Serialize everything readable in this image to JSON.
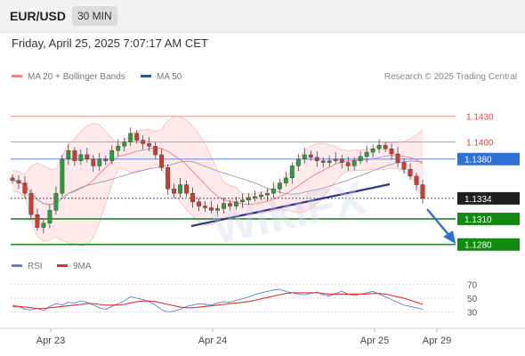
{
  "header": {
    "symbol": "EUR/USD",
    "timeframe": "30 MIN",
    "datetime": "Friday, April 25, 2025 7:07:17 AM CET"
  },
  "legend": {
    "items": [
      {
        "label": "MA 20 + Bollinger Bands",
        "color": "#f08080"
      },
      {
        "label": "MA 50",
        "color": "#2b5597"
      }
    ],
    "credit": "Research © 2025 Trading Central"
  },
  "rsi_legend": {
    "items": [
      {
        "label": "RSI",
        "color": "#5b7fd6"
      },
      {
        "label": "9MA",
        "color": "#e03030"
      }
    ]
  },
  "chart_data": [
    {
      "type": "candlestick",
      "x_labels": [
        "Apr 23",
        "Apr 24",
        "Apr 25",
        "Apr 29"
      ],
      "ylim": [
        1.1262,
        1.1462
      ],
      "levels": [
        {
          "value": 1.143,
          "label": "1.1430",
          "kind": "resistance",
          "color": "#f28b8b"
        },
        {
          "value": 1.14,
          "label": "1.1400",
          "kind": "resistance",
          "color": "#f28b8b"
        },
        {
          "value": 1.138,
          "label": "1.1380",
          "kind": "pivot",
          "color": "#5b8def"
        },
        {
          "value": 1.1334,
          "label": "1.1334",
          "kind": "last",
          "color": "#1a1a1a"
        },
        {
          "value": 1.131,
          "label": "1.1310",
          "kind": "support",
          "color": "#1e8a1e"
        },
        {
          "value": 1.128,
          "label": "1.1280",
          "kind": "support",
          "color": "#1e8a1e"
        }
      ],
      "series": [
        {
          "name": "Price",
          "values": [
            1.1355,
            1.1352,
            1.134,
            1.1315,
            1.13,
            1.1305,
            1.132,
            1.134,
            1.138,
            1.139,
            1.1378,
            1.1385,
            1.138,
            1.1372,
            1.138,
            1.1378,
            1.139,
            1.1395,
            1.14,
            1.141,
            1.1402,
            1.1398,
            1.1395,
            1.1385,
            1.137,
            1.1345,
            1.134,
            1.135,
            1.134,
            1.133,
            1.1325,
            1.1323,
            1.132,
            1.1322,
            1.1328,
            1.1325,
            1.133,
            1.1332,
            1.1335,
            1.1336,
            1.1338,
            1.134,
            1.1345,
            1.1352,
            1.1358,
            1.1372,
            1.138,
            1.1385,
            1.1382,
            1.1378,
            1.1376,
            1.1378,
            1.138,
            1.1376,
            1.1372,
            1.1378,
            1.1383,
            1.1388,
            1.1392,
            1.1396,
            1.1392,
            1.1386,
            1.1376,
            1.1368,
            1.136,
            1.135,
            1.1334
          ]
        }
      ]
    },
    {
      "type": "line",
      "title": "RSI",
      "y_ticks": [
        70,
        50,
        30
      ],
      "ylim": [
        15,
        80
      ],
      "series": [
        {
          "name": "RSI",
          "values": [
            40,
            38,
            34,
            33,
            35,
            32,
            38,
            42,
            40,
            44,
            43,
            46,
            44,
            40,
            36,
            34,
            38,
            42,
            46,
            52,
            50,
            48,
            45,
            40,
            33,
            30,
            31,
            34,
            38,
            40,
            42,
            41,
            40,
            43,
            45,
            44,
            47,
            49,
            52,
            55,
            58,
            60,
            62,
            63,
            60,
            58,
            56,
            55,
            57,
            59,
            55,
            53,
            57,
            60,
            56,
            54,
            56,
            58,
            60,
            56,
            52,
            48,
            44,
            40,
            38,
            36,
            34
          ]
        },
        {
          "name": "9MA",
          "values": [
            38,
            38,
            37,
            36,
            35,
            35,
            36,
            37,
            38,
            39,
            40,
            41,
            42,
            42,
            41,
            40,
            40,
            40,
            41,
            43,
            45,
            46,
            46,
            45,
            43,
            41,
            39,
            37,
            36,
            36,
            37,
            38,
            39,
            40,
            41,
            42,
            43,
            44,
            45,
            47,
            49,
            51,
            53,
            55,
            57,
            58,
            58,
            58,
            58,
            58,
            57,
            56,
            56,
            56,
            56,
            56,
            56,
            56,
            57,
            57,
            56,
            54,
            52,
            50,
            47,
            44,
            41
          ]
        }
      ]
    }
  ]
}
